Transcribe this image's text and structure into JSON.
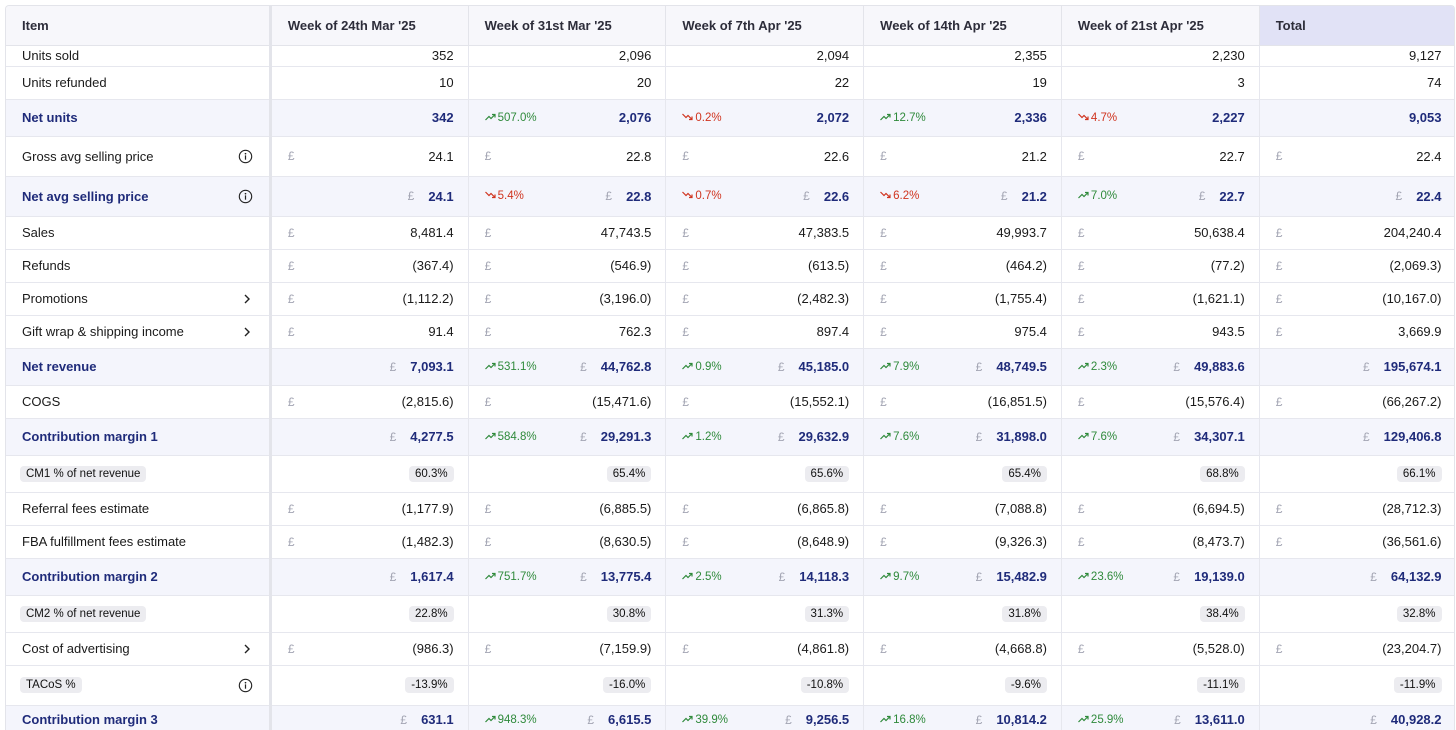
{
  "header": {
    "item": "Item",
    "weeks": [
      "Week of 24th Mar '25",
      "Week of 31st Mar '25",
      "Week of 7th Apr '25",
      "Week of 14th Apr '25",
      "Week of 21st Apr '25"
    ],
    "total": "Total"
  },
  "currency": "£",
  "colors": {
    "highlight_text": "#1f2b7a",
    "highlight_bg": "#f4f5fc",
    "up": "#2f8a3b",
    "down": "#d0341f",
    "total_header_bg": "#e1e2f6"
  },
  "rows": [
    {
      "label": "Units sold",
      "kind": "plain",
      "height": "short",
      "cur": false,
      "values": [
        "352",
        "2,096",
        "2,094",
        "2,355",
        "2,230"
      ],
      "total": "9,127"
    },
    {
      "label": "Units refunded",
      "kind": "plain",
      "height": "norm",
      "cur": false,
      "values": [
        "10",
        "20",
        "22",
        "19",
        "3"
      ],
      "total": "74"
    },
    {
      "label": "Net units",
      "kind": "hl",
      "height": "tall",
      "cur": false,
      "values": [
        "342",
        "2,076",
        "2,072",
        "2,336",
        "2,227"
      ],
      "changes": [
        null,
        {
          "dir": "up",
          "text": "507.0%"
        },
        {
          "dir": "down",
          "text": "0.2%"
        },
        {
          "dir": "up",
          "text": "12.7%"
        },
        {
          "dir": "down",
          "text": "4.7%"
        }
      ],
      "total": "9,053"
    },
    {
      "label": "Gross avg selling price",
      "kind": "plain",
      "height": "hi",
      "icon": "info-icon",
      "cur": true,
      "values": [
        "24.1",
        "22.8",
        "22.6",
        "21.2",
        "22.7"
      ],
      "total": "22.4"
    },
    {
      "label": "Net avg selling price",
      "kind": "hl",
      "height": "hi",
      "icon": "info-icon",
      "cur": true,
      "values": [
        "24.1",
        "22.8",
        "22.6",
        "21.2",
        "22.7"
      ],
      "changes": [
        null,
        {
          "dir": "down",
          "text": "5.4%"
        },
        {
          "dir": "down",
          "text": "0.7%"
        },
        {
          "dir": "down",
          "text": "6.2%"
        },
        {
          "dir": "up",
          "text": "7.0%"
        }
      ],
      "total": "22.4"
    },
    {
      "label": "Sales",
      "kind": "plain",
      "height": "norm",
      "cur": true,
      "values": [
        "8,481.4",
        "47,743.5",
        "47,383.5",
        "49,993.7",
        "50,638.4"
      ],
      "total": "204,240.4"
    },
    {
      "label": "Refunds",
      "kind": "plain",
      "height": "norm",
      "cur": true,
      "values": [
        "(367.4)",
        "(546.9)",
        "(613.5)",
        "(464.2)",
        "(77.2)"
      ],
      "total": "(2,069.3)"
    },
    {
      "label": "Promotions",
      "kind": "plain",
      "height": "norm",
      "icon": "chevron-right-icon",
      "cur": true,
      "values": [
        "(1,112.2)",
        "(3,196.0)",
        "(2,482.3)",
        "(1,755.4)",
        "(1,621.1)"
      ],
      "total": "(10,167.0)"
    },
    {
      "label": "Gift wrap & shipping income",
      "kind": "plain",
      "height": "norm",
      "icon": "chevron-right-icon",
      "cur": true,
      "values": [
        "91.4",
        "762.3",
        "897.4",
        "975.4",
        "943.5"
      ],
      "total": "3,669.9"
    },
    {
      "label": "Net revenue",
      "kind": "hl",
      "height": "tall",
      "cur": true,
      "values": [
        "7,093.1",
        "44,762.8",
        "45,185.0",
        "48,749.5",
        "49,883.6"
      ],
      "changes": [
        null,
        {
          "dir": "up",
          "text": "531.1%"
        },
        {
          "dir": "up",
          "text": "0.9%"
        },
        {
          "dir": "up",
          "text": "7.9%"
        },
        {
          "dir": "up",
          "text": "2.3%"
        }
      ],
      "total": "195,674.1"
    },
    {
      "label": "COGS",
      "kind": "plain",
      "height": "norm",
      "cur": true,
      "values": [
        "(2,815.6)",
        "(15,471.6)",
        "(15,552.1)",
        "(16,851.5)",
        "(15,576.4)"
      ],
      "total": "(66,267.2)"
    },
    {
      "label": "Contribution margin 1",
      "kind": "hl",
      "height": "tall",
      "cur": true,
      "values": [
        "4,277.5",
        "29,291.3",
        "29,632.9",
        "31,898.0",
        "34,307.1"
      ],
      "changes": [
        null,
        {
          "dir": "up",
          "text": "584.8%"
        },
        {
          "dir": "up",
          "text": "1.2%"
        },
        {
          "dir": "up",
          "text": "7.6%"
        },
        {
          "dir": "up",
          "text": "7.6%"
        }
      ],
      "total": "129,406.8"
    },
    {
      "label": "CM1 % of net revenue",
      "kind": "pct",
      "height": "tall",
      "values": [
        "60.3%",
        "65.4%",
        "65.6%",
        "65.4%",
        "68.8%"
      ],
      "total": "66.1%"
    },
    {
      "label": "Referral fees estimate",
      "kind": "plain",
      "height": "norm",
      "cur": true,
      "values": [
        "(1,177.9)",
        "(6,885.5)",
        "(6,865.8)",
        "(7,088.8)",
        "(6,694.5)"
      ],
      "total": "(28,712.3)"
    },
    {
      "label": "FBA fulfillment fees estimate",
      "kind": "plain",
      "height": "norm",
      "cur": true,
      "values": [
        "(1,482.3)",
        "(8,630.5)",
        "(8,648.9)",
        "(9,326.3)",
        "(8,473.7)"
      ],
      "total": "(36,561.6)"
    },
    {
      "label": "Contribution margin 2",
      "kind": "hl",
      "height": "tall",
      "cur": true,
      "values": [
        "1,617.4",
        "13,775.4",
        "14,118.3",
        "15,482.9",
        "19,139.0"
      ],
      "changes": [
        null,
        {
          "dir": "up",
          "text": "751.7%"
        },
        {
          "dir": "up",
          "text": "2.5%"
        },
        {
          "dir": "up",
          "text": "9.7%"
        },
        {
          "dir": "up",
          "text": "23.6%"
        }
      ],
      "total": "64,132.9"
    },
    {
      "label": "CM2 % of net revenue",
      "kind": "pct",
      "height": "tall",
      "values": [
        "22.8%",
        "30.8%",
        "31.3%",
        "31.8%",
        "38.4%"
      ],
      "total": "32.8%"
    },
    {
      "label": "Cost of advertising",
      "kind": "plain",
      "height": "norm",
      "icon": "chevron-right-icon",
      "cur": true,
      "values": [
        "(986.3)",
        "(7,159.9)",
        "(4,861.8)",
        "(4,668.8)",
        "(5,528.0)"
      ],
      "total": "(23,204.7)"
    },
    {
      "label": "TACoS %",
      "kind": "pct",
      "height": "hi",
      "icon": "info-icon",
      "values": [
        "-13.9%",
        "-16.0%",
        "-10.8%",
        "-9.6%",
        "-11.1%"
      ],
      "total": "-11.9%"
    },
    {
      "label": "Contribution margin 3",
      "kind": "hl",
      "height": "last",
      "cur": true,
      "values": [
        "631.1",
        "6,615.5",
        "9,256.5",
        "10,814.2",
        "13,611.0"
      ],
      "changes": [
        null,
        {
          "dir": "up",
          "text": "948.3%"
        },
        {
          "dir": "up",
          "text": "39.9%"
        },
        {
          "dir": "up",
          "text": "16.8%"
        },
        {
          "dir": "up",
          "text": "25.9%"
        }
      ],
      "total": "40,928.2"
    }
  ]
}
